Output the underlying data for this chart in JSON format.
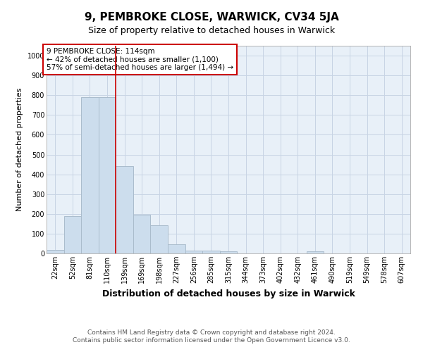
{
  "title": "9, PEMBROKE CLOSE, WARWICK, CV34 5JA",
  "subtitle": "Size of property relative to detached houses in Warwick",
  "xlabel": "Distribution of detached houses by size in Warwick",
  "ylabel": "Number of detached properties",
  "categories": [
    "22sqm",
    "52sqm",
    "81sqm",
    "110sqm",
    "139sqm",
    "169sqm",
    "198sqm",
    "227sqm",
    "256sqm",
    "285sqm",
    "315sqm",
    "344sqm",
    "373sqm",
    "402sqm",
    "432sqm",
    "461sqm",
    "490sqm",
    "519sqm",
    "549sqm",
    "578sqm",
    "607sqm"
  ],
  "values": [
    18,
    190,
    790,
    790,
    440,
    195,
    143,
    48,
    15,
    13,
    12,
    0,
    0,
    0,
    0,
    9,
    0,
    0,
    0,
    0,
    0
  ],
  "bar_color": "#ccdded",
  "bar_edge_color": "#aabccc",
  "vline_color": "#cc0000",
  "annotation_text": "9 PEMBROKE CLOSE: 114sqm\n← 42% of detached houses are smaller (1,100)\n57% of semi-detached houses are larger (1,494) →",
  "annotation_box_color": "#ffffff",
  "annotation_box_edge_color": "#cc0000",
  "ylim": [
    0,
    1050
  ],
  "yticks": [
    0,
    100,
    200,
    300,
    400,
    500,
    600,
    700,
    800,
    900,
    1000
  ],
  "grid_color": "#c8d4e4",
  "background_color": "#e8f0f8",
  "footer": "Contains HM Land Registry data © Crown copyright and database right 2024.\nContains public sector information licensed under the Open Government Licence v3.0.",
  "title_fontsize": 11,
  "subtitle_fontsize": 9,
  "xlabel_fontsize": 9,
  "ylabel_fontsize": 8,
  "tick_fontsize": 7,
  "annotation_fontsize": 7.5,
  "footer_fontsize": 6.5
}
